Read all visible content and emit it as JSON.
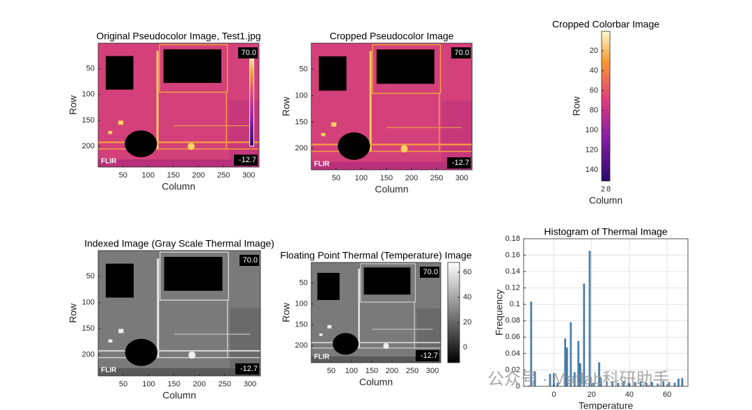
{
  "chart_data": [
    {
      "type": "image",
      "title": "Original Pseudocolor Image, Test1.jpg",
      "xlabel": "Column",
      "ylabel": "Row",
      "xlim": [
        0.5,
        320.5
      ],
      "ylim": [
        0.5,
        240.5
      ],
      "xticks": [
        50,
        100,
        150,
        200,
        250,
        300
      ],
      "yticks": [
        50,
        100,
        150,
        200
      ],
      "colormap": "inferno",
      "embedded_colorbar": true,
      "overlay_labels": [
        "70.0",
        "-12.7"
      ],
      "logo": "FLIR"
    },
    {
      "type": "image",
      "title": "Cropped Pseudocolor Image",
      "xlabel": "Column",
      "ylabel": "Row",
      "xlim": [
        0.5,
        320.5
      ],
      "ylim": [
        0.5,
        240.5
      ],
      "xticks": [
        50,
        100,
        150,
        200,
        250,
        300
      ],
      "yticks": [
        50,
        100,
        150,
        200
      ],
      "colormap": "inferno",
      "embedded_colorbar": false,
      "overlay_labels": [
        "70.0",
        "-12.7"
      ],
      "logo": "FLIR"
    },
    {
      "type": "colorbar-image",
      "title": "Cropped Colorbar Image",
      "xlabel": "Column",
      "ylabel": "Row",
      "xlim": [
        0.5,
        9.5
      ],
      "ylim": [
        0.5,
        151
      ],
      "xticks": [
        2,
        8
      ],
      "yticks": [
        20,
        40,
        60,
        80,
        100,
        120,
        140
      ],
      "colormap": "inferno"
    },
    {
      "type": "image",
      "title": "Indexed Image (Gray Scale Thermal Image)",
      "xlabel": "Column",
      "ylabel": "Row",
      "xlim": [
        0.5,
        320.5
      ],
      "ylim": [
        0.5,
        240.5
      ],
      "xticks": [
        50,
        100,
        150,
        200,
        250,
        300
      ],
      "yticks": [
        50,
        100,
        150,
        200
      ],
      "colormap": "gray",
      "embedded_colorbar": false,
      "overlay_labels": [
        "70.0",
        "-12.7"
      ],
      "logo": "FLIR"
    },
    {
      "type": "image",
      "title": "Floating Point Thermal (Temperature) Image",
      "xlabel": "Column",
      "ylabel": "Row",
      "xlim": [
        0.5,
        320.5
      ],
      "ylim": [
        0.5,
        240.5
      ],
      "xticks": [
        50,
        100,
        150,
        200,
        250,
        300
      ],
      "yticks": [
        50,
        100,
        150,
        200
      ],
      "colormap": "gray",
      "embedded_colorbar": false,
      "overlay_labels": [
        "70.0",
        "-12.7"
      ],
      "logo": "FLIR",
      "colorbar": {
        "clim": [
          -12.2,
          67.8
        ],
        "ticks": [
          0,
          20,
          40,
          60
        ]
      }
    },
    {
      "type": "histogram",
      "title": "Histogram of Thermal Image",
      "xlabel": "Temperature",
      "ylabel": "Frequency",
      "xlim": [
        -16,
        71
      ],
      "ylim": [
        0,
        0.18
      ],
      "xticks": [
        0,
        20,
        40,
        60
      ],
      "yticks": [
        0,
        0.02,
        0.04,
        0.06,
        0.08,
        0.1,
        0.12,
        0.14,
        0.16,
        0.18
      ],
      "grid": true,
      "color": "#4d87b8",
      "x": [
        -12,
        -10,
        -2,
        0,
        2,
        6,
        7,
        9,
        11,
        13,
        14,
        16,
        19,
        21,
        24,
        25,
        28,
        31,
        34,
        37,
        40,
        43,
        46,
        49,
        52,
        55,
        58,
        61,
        64,
        66,
        68
      ],
      "values": [
        0.103,
        0.018,
        0.015,
        0.016,
        0.004,
        0.058,
        0.047,
        0.078,
        0.017,
        0.055,
        0.028,
        0.125,
        0.165,
        0.004,
        0.029,
        0.01,
        0.006,
        0.005,
        0.004,
        0.006,
        0.004,
        0.005,
        0.006,
        0.004,
        0.005,
        0.003,
        0.006,
        0.005,
        0.004,
        0.009,
        0.01
      ]
    }
  ],
  "watermark": "公众号 · Matlab科研助手"
}
